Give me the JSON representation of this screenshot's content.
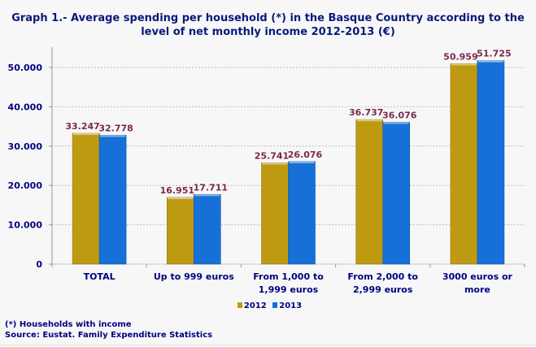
{
  "chart_data": {
    "type": "bar",
    "title": "Graph 1.- Average spending per household (*) in the Basque Country according to the level of net monthly income 2012-2013 (€)",
    "categories": [
      "TOTAL",
      "Up to 999 euros",
      "From 1,000 to 1,999 euros",
      "From 2,000 to 2,999 euros",
      "3000 euros or more"
    ],
    "category_lines": [
      [
        "TOTAL"
      ],
      [
        "Up to 999 euros"
      ],
      [
        "From 1,000 to",
        "1,999 euros"
      ],
      [
        "From 2,000 to",
        "2,999 euros"
      ],
      [
        "3000 euros or",
        "more"
      ]
    ],
    "series": [
      {
        "name": "2012",
        "values": [
          33247,
          16951,
          25741,
          36737,
          50959
        ],
        "labels": [
          "33.247",
          "16.951",
          "25.741",
          "36.737",
          "50.959"
        ],
        "color": "#BD9A12"
      },
      {
        "name": "2013",
        "values": [
          32778,
          17711,
          26076,
          36076,
          51725
        ],
        "labels": [
          "32.778",
          "17.711",
          "26.076",
          "36.076",
          "51.725"
        ],
        "color": "#1670D8"
      }
    ],
    "ylim": [
      0,
      55000
    ],
    "yticks": [
      0,
      10000,
      20000,
      30000,
      40000,
      50000
    ],
    "ytick_labels": [
      "0",
      "10.000",
      "20.000",
      "30.000",
      "40.000",
      "50.000"
    ],
    "grid": true,
    "legend_position": "bottom-center",
    "xlabel": "",
    "ylabel": ""
  },
  "notes": {
    "footnote": "(*) Households with income",
    "source": "Source: Eustat. Family Expenditure Statistics"
  }
}
